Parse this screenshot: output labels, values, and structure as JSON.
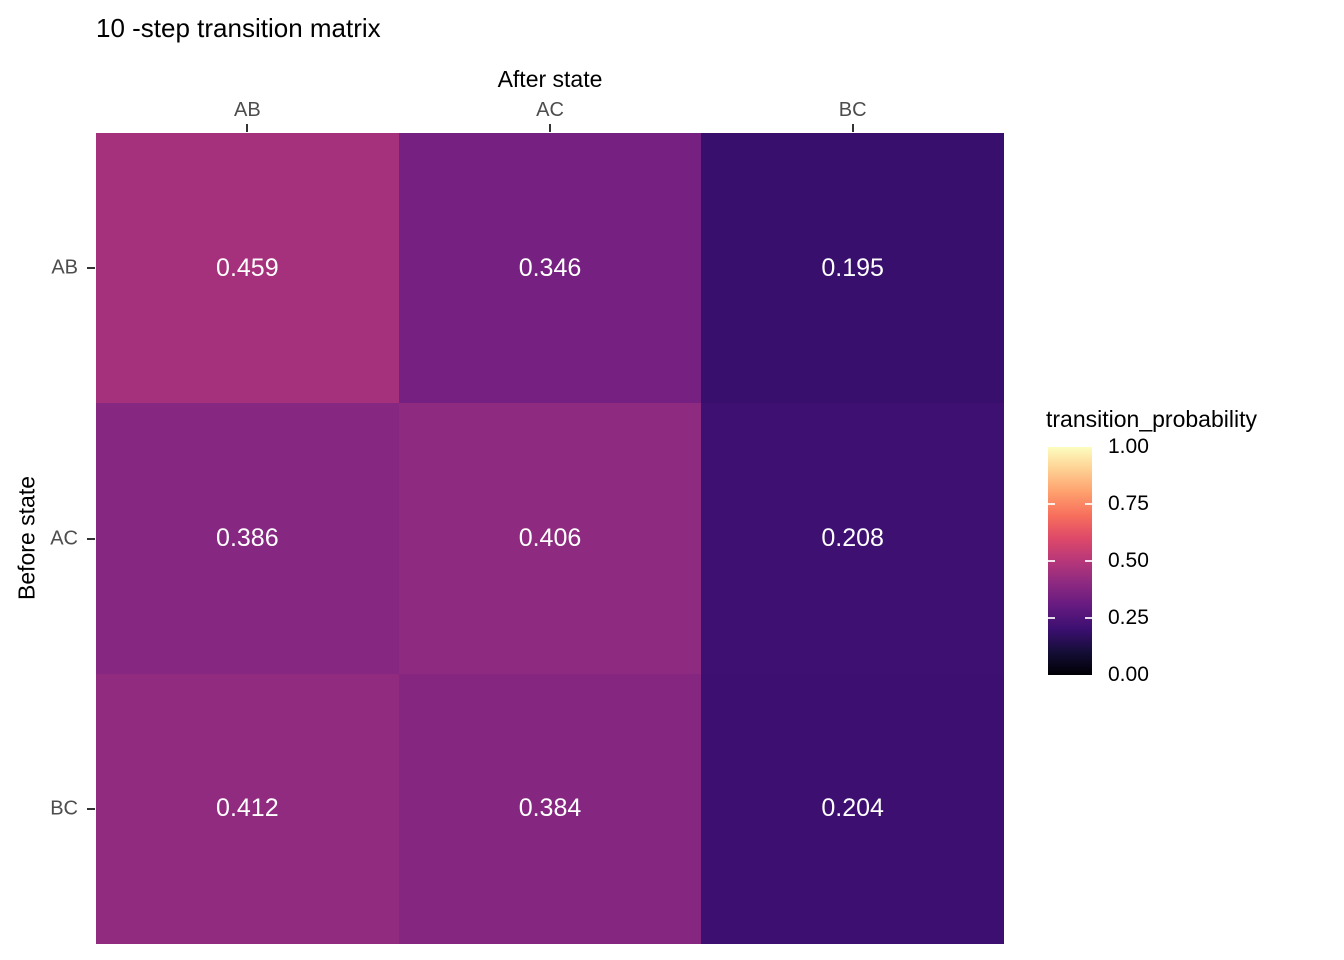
{
  "title": "10 -step transition matrix",
  "axes": {
    "x_title": "After state",
    "y_title": "Before state"
  },
  "legend": {
    "title": "transition_probability",
    "ticks": [
      {
        "label": "1.00",
        "value": 1.0
      },
      {
        "label": "0.75",
        "value": 0.75
      },
      {
        "label": "0.50",
        "value": 0.5
      },
      {
        "label": "0.25",
        "value": 0.25
      },
      {
        "label": "0.00",
        "value": 0.0
      }
    ],
    "inner_tick_values": [
      0.75,
      0.5,
      0.25
    ],
    "gradient_stops": [
      "#000004",
      "#140E36",
      "#3B0F70",
      "#641A80",
      "#8C2981",
      "#B73779",
      "#DE4968",
      "#F76F5C",
      "#FE9F6D",
      "#FECF92",
      "#FCFDBF"
    ]
  },
  "colors": {
    "background": "#ffffff",
    "axis_tick_label": "#4d4d4d",
    "axis_tick_mark": "#333333",
    "cell_text": "#ffffff",
    "title_text": "#000000"
  },
  "chart_data": {
    "type": "heatmap",
    "title": "10 -step transition matrix",
    "xlabel": "After state",
    "ylabel": "Before state",
    "xlabel_position": "top",
    "categories_x": [
      "AB",
      "AC",
      "BC"
    ],
    "categories_y": [
      "AB",
      "AC",
      "BC"
    ],
    "values": [
      [
        0.459,
        0.346,
        0.195
      ],
      [
        0.386,
        0.406,
        0.208
      ],
      [
        0.412,
        0.384,
        0.204
      ]
    ],
    "value_labels": [
      [
        "0.459",
        "0.346",
        "0.195"
      ],
      [
        "0.386",
        "0.406",
        "0.208"
      ],
      [
        "0.412",
        "0.384",
        "0.204"
      ]
    ],
    "cell_colors": [
      [
        "#A5317C",
        "#762181",
        "#390F6D"
      ],
      [
        "#862781",
        "#8E2A80",
        "#3E1071"
      ],
      [
        "#912B80",
        "#852781",
        "#3D0F70"
      ]
    ],
    "colorscale": "magma",
    "zlim": [
      0,
      1
    ],
    "legend_title": "transition_probability",
    "legend_position": "right",
    "grid": false
  }
}
